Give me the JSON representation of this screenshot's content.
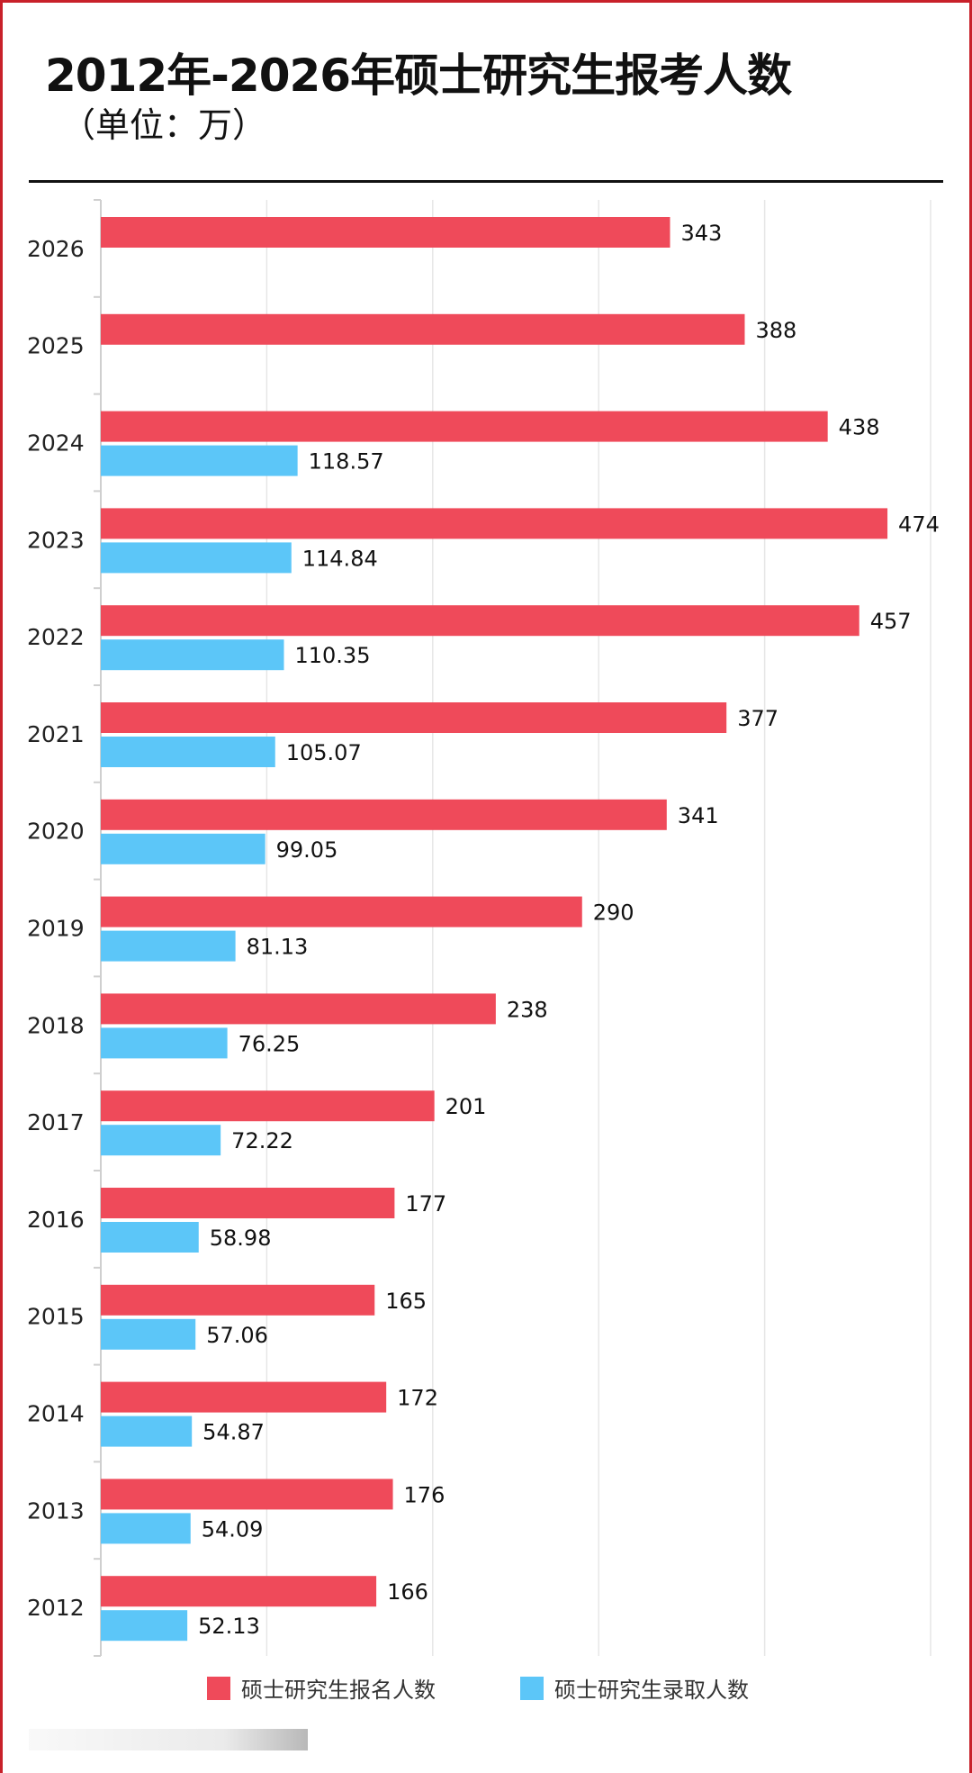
{
  "title": "2012年-2026年硕士研究生报考人数",
  "subtitle": "（单位：万）",
  "chart_data": {
    "type": "bar",
    "orientation": "horizontal",
    "title": "2012年-2026年硕士研究生报考人数",
    "subtitle": "（单位：万）",
    "categories": [
      "2026",
      "2025",
      "2024",
      "2023",
      "2022",
      "2021",
      "2020",
      "2019",
      "2018",
      "2017",
      "2016",
      "2015",
      "2014",
      "2013",
      "2012"
    ],
    "series": [
      {
        "name": "硕士研究生报名人数",
        "color": "#ef4a5a",
        "values": [
          343,
          388,
          438,
          474,
          457,
          377,
          341,
          290,
          238,
          201,
          177,
          165,
          172,
          176,
          166
        ],
        "labels": [
          "343",
          "388",
          "438",
          "474",
          "457",
          "377",
          "341",
          "290",
          "238",
          "201",
          "177",
          "165",
          "172",
          "176",
          "166"
        ]
      },
      {
        "name": "硕士研究生录取人数",
        "color": "#5cc6f8",
        "values": [
          null,
          null,
          118.57,
          114.84,
          110.35,
          105.07,
          99.05,
          81.13,
          76.25,
          72.22,
          58.98,
          57.06,
          54.87,
          54.09,
          52.13
        ],
        "labels": [
          null,
          null,
          "118.57",
          "114.84",
          "110.35",
          "105.07",
          "99.05",
          "81.13",
          "76.25",
          "72.22",
          "58.98",
          "57.06",
          "54.87",
          "54.09",
          "52.13"
        ]
      }
    ],
    "xlim": [
      0,
      500
    ],
    "grid": true,
    "legend_placement": "bottom"
  }
}
